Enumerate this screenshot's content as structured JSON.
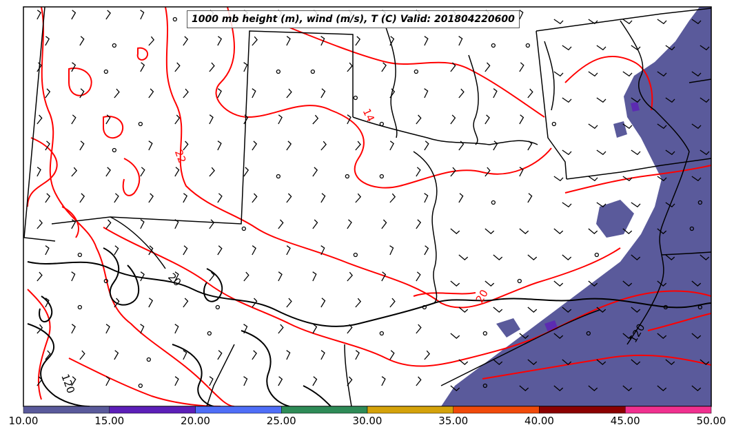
{
  "title": "1000 mb height (m), wind (m/s), T (C) Valid: 201804220600",
  "colorbar": {
    "ticks": [
      "10.00",
      "15.00",
      "20.00",
      "25.00",
      "30.00",
      "35.00",
      "40.00",
      "45.00",
      "50.00"
    ],
    "colors": [
      "#5a5a9b",
      "#5c1fb8",
      "#4f6ef7",
      "#2e8b57",
      "#d4a20a",
      "#f04a0a",
      "#8b0000",
      "#f0308f"
    ]
  },
  "contour_labels": {
    "temperature": [
      "22",
      "14",
      "20",
      "20"
    ],
    "height": [
      "120",
      "120"
    ]
  },
  "colors": {
    "temperature_contour": "#ff0000",
    "height_contour": "#000000",
    "wind_shading": "#5a5a9b",
    "borders": "#000000"
  }
}
